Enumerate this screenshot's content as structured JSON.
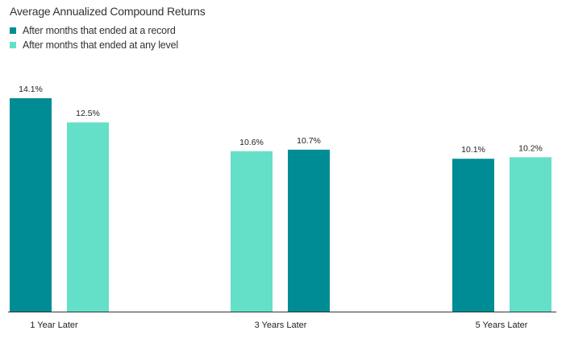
{
  "chart_data": {
    "type": "bar",
    "title": "Average Annualized Compound Returns",
    "categories": [
      "1 Year Later",
      "3 Years Later",
      "5 Years Later"
    ],
    "series": [
      {
        "name": "After months that ended at a record",
        "color": "#008c94",
        "values": [
          14.1,
          10.7,
          10.1
        ],
        "labels": [
          "14.1%",
          "10.7%",
          "10.1%"
        ]
      },
      {
        "name": "After months that ended at any level",
        "color": "#64e0c8",
        "values": [
          12.5,
          10.6,
          10.2
        ],
        "labels": [
          "12.5%",
          "10.6%",
          "10.2%"
        ]
      }
    ],
    "bar_order": [
      [
        "After months that ended at a record",
        "After months that ended at any level"
      ],
      [
        "After months that ended at any level",
        "After months that ended at a record"
      ],
      [
        "After months that ended at a record",
        "After months that ended at any level"
      ]
    ],
    "ylim": [
      0,
      14.1
    ],
    "xlabel": "",
    "ylabel": "",
    "grid": false,
    "legend_position": "top-left"
  }
}
